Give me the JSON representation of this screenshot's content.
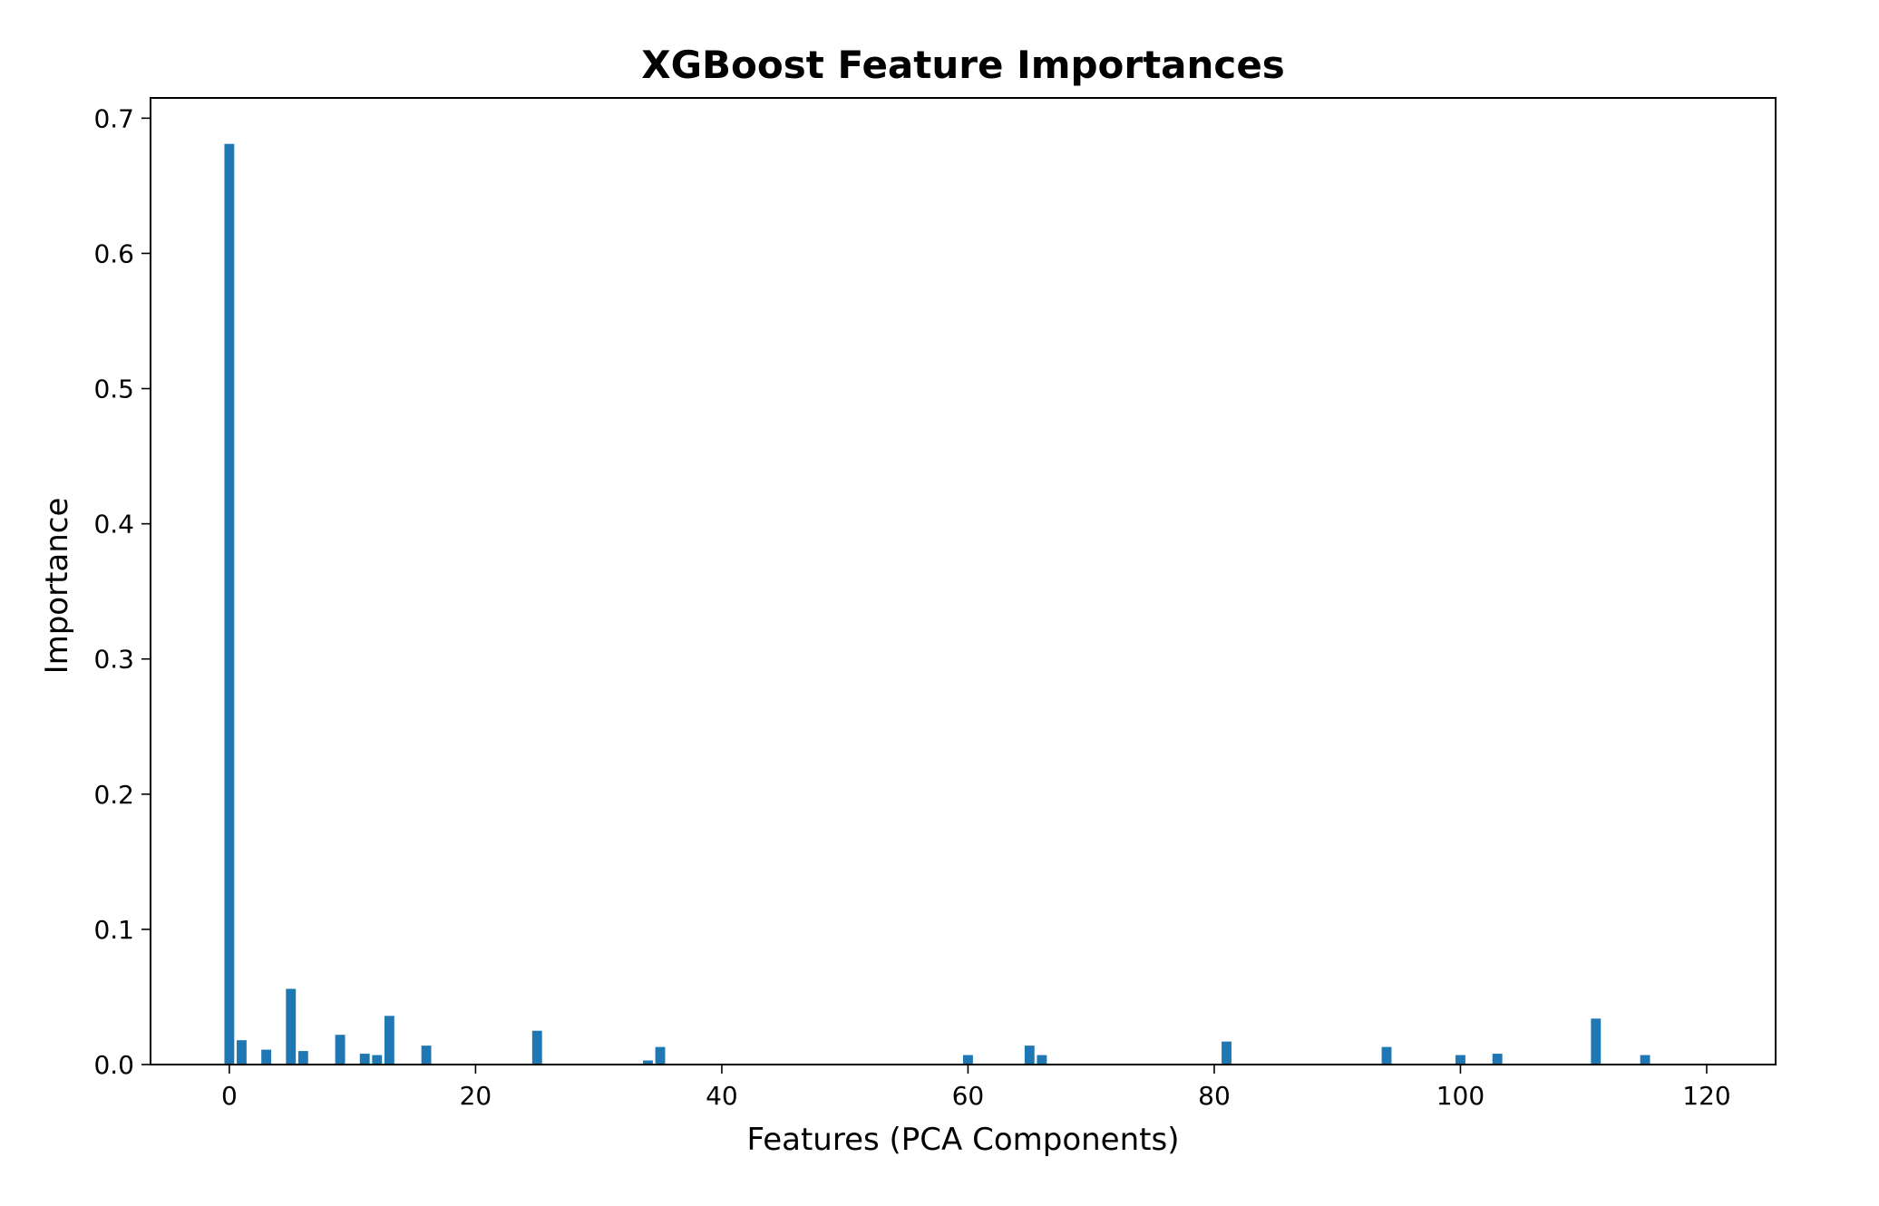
{
  "chart_data": {
    "type": "bar",
    "title": "XGBoost Feature Importances",
    "xlabel": "Features (PCA Components)",
    "ylabel": "Importance",
    "xlim": [
      -6.4,
      125.6
    ],
    "ylim": [
      0,
      0.715
    ],
    "xticks": [
      0,
      20,
      40,
      60,
      80,
      100,
      120
    ],
    "yticks": [
      0.0,
      0.1,
      0.2,
      0.3,
      0.4,
      0.5,
      0.6,
      0.7
    ],
    "xtick_labels": [
      "0",
      "20",
      "40",
      "60",
      "80",
      "100",
      "120"
    ],
    "ytick_labels": [
      "0.0",
      "0.1",
      "0.2",
      "0.3",
      "0.4",
      "0.5",
      "0.6",
      "0.7"
    ],
    "grid": false,
    "bar_color": "#1f77b4",
    "series": [
      {
        "x": [
          0,
          1,
          3,
          5,
          6,
          9,
          11,
          12,
          13,
          16,
          25,
          34,
          35,
          60,
          65,
          66,
          81,
          94,
          100,
          103,
          111,
          115
        ],
        "values": [
          0.681,
          0.018,
          0.011,
          0.056,
          0.01,
          0.022,
          0.008,
          0.007,
          0.036,
          0.014,
          0.025,
          0.003,
          0.013,
          0.007,
          0.014,
          0.007,
          0.017,
          0.013,
          0.007,
          0.008,
          0.034,
          0.007
        ]
      }
    ]
  }
}
